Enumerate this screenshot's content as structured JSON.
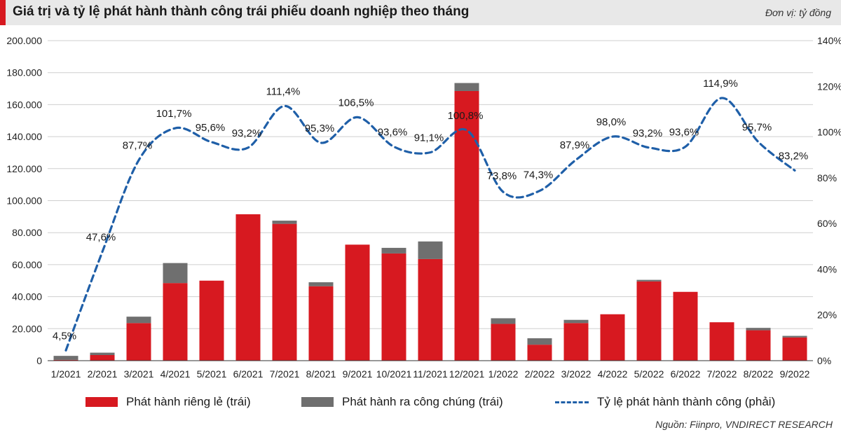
{
  "header": {
    "title": "Giá trị và tỷ lệ phát hành thành công trái phiếu doanh nghiệp theo tháng",
    "unit": "Đơn vị: tỷ đồng"
  },
  "source": "Nguồn: Fiinpro, VNDIRECT RESEARCH",
  "colors": {
    "private": "#d71920",
    "public": "#6f6f6f",
    "rate": "#1f5fa8"
  },
  "chart_data": {
    "type": "bar",
    "title": "Giá trị và tỷ lệ phát hành thành công trái phiếu doanh nghiệp theo tháng",
    "categories": [
      "1/2021",
      "2/2021",
      "3/2021",
      "4/2021",
      "5/2021",
      "6/2021",
      "7/2021",
      "8/2021",
      "9/2021",
      "10/2021",
      "11/2021",
      "12/2021",
      "1/2022",
      "2/2022",
      "3/2022",
      "4/2022",
      "5/2022",
      "6/2022",
      "7/2022",
      "8/2022",
      "9/2022"
    ],
    "series": [
      {
        "name": "Phát hành riêng lẻ (trái)",
        "type": "bar",
        "axis": "left",
        "values": [
          500,
          3500,
          23500,
          48500,
          50000,
          91500,
          85500,
          46500,
          72500,
          67000,
          63500,
          168500,
          23000,
          10000,
          23500,
          29000,
          49500,
          43000,
          24000,
          19000,
          14500
        ]
      },
      {
        "name": "Phát hành ra công chúng (trái)",
        "type": "bar",
        "axis": "left",
        "values": [
          2500,
          1500,
          4000,
          12500,
          0,
          0,
          2000,
          2500,
          0,
          3500,
          11000,
          5000,
          3500,
          4000,
          2000,
          0,
          1000,
          0,
          0,
          1500,
          1000
        ]
      },
      {
        "name": "Tỷ lệ phát hành thành công (phải)",
        "type": "line",
        "axis": "right",
        "values": [
          4.5,
          47.6,
          87.7,
          101.7,
          95.6,
          93.2,
          111.4,
          95.3,
          106.5,
          93.6,
          91.1,
          100.8,
          73.8,
          74.3,
          87.9,
          98.0,
          93.2,
          93.6,
          114.9,
          95.7,
          83.2
        ],
        "labels": [
          "4,5%",
          "47,6%",
          "87,7%",
          "101,7%",
          "95,6%",
          "93,2%",
          "111,4%",
          "95,3%",
          "106,5%",
          "93,6%",
          "91,1%",
          "100,8%",
          "73,8%",
          "74,3%",
          "87,9%",
          "98,0%",
          "93,2%",
          "93,6%",
          "114,9%",
          "95,7%",
          "83,2%"
        ]
      }
    ],
    "y_left": {
      "range": [
        0,
        200000
      ],
      "ticks": [
        0,
        20000,
        40000,
        60000,
        80000,
        100000,
        120000,
        140000,
        160000,
        180000,
        200000
      ],
      "tick_labels": [
        "0",
        "20.000",
        "40.000",
        "60.000",
        "80.000",
        "100.000",
        "120.000",
        "140.000",
        "160.000",
        "180.000",
        "200.000"
      ]
    },
    "y_right": {
      "range": [
        0,
        140
      ],
      "ticks": [
        0,
        20,
        40,
        60,
        80,
        100,
        120,
        140
      ],
      "tick_labels": [
        "0%",
        "20%",
        "40%",
        "60%",
        "80%",
        "100%",
        "120%",
        "140%"
      ]
    },
    "grid": true,
    "legend_position": "bottom"
  }
}
